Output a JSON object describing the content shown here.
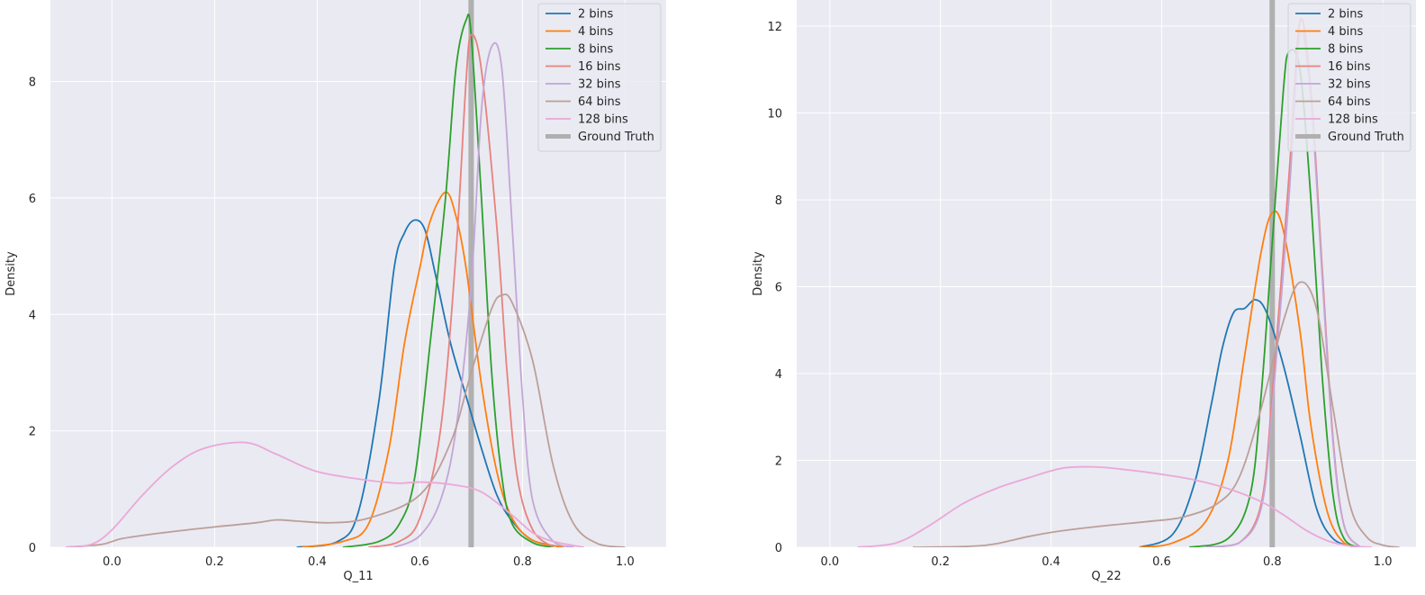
{
  "chart_data": [
    {
      "type": "line",
      "title": "",
      "xlabel": "Q_11",
      "ylabel": "Density",
      "xlim": [
        -0.12,
        1.08
      ],
      "ylim": [
        0,
        9.4
      ],
      "xticks": [
        0.0,
        0.2,
        0.4,
        0.6,
        0.8,
        1.0
      ],
      "yticks": [
        0,
        2,
        4,
        6,
        8
      ],
      "xtick_labels": [
        "0.0",
        "0.2",
        "0.4",
        "0.6",
        "0.8",
        "1.0"
      ],
      "ytick_labels": [
        "0",
        "2",
        "4",
        "6",
        "8"
      ],
      "grid": true,
      "legend_position": "top-right",
      "ground_truth": {
        "name": "Ground Truth",
        "x": 0.7,
        "color": "#b0b0b0"
      },
      "series": [
        {
          "name": "2 bins",
          "color": "#1f77b4",
          "points": [
            [
              0.36,
              0
            ],
            [
              0.44,
              0.1
            ],
            [
              0.48,
              0.6
            ],
            [
              0.52,
              2.5
            ],
            [
              0.55,
              4.8
            ],
            [
              0.57,
              5.4
            ],
            [
              0.59,
              5.62
            ],
            [
              0.61,
              5.45
            ],
            [
              0.63,
              4.7
            ],
            [
              0.66,
              3.5
            ],
            [
              0.69,
              2.6
            ],
            [
              0.72,
              1.7
            ],
            [
              0.75,
              0.9
            ],
            [
              0.78,
              0.45
            ],
            [
              0.82,
              0.12
            ],
            [
              0.88,
              0
            ]
          ]
        },
        {
          "name": "4 bins",
          "color": "#ff7f0e",
          "points": [
            [
              0.37,
              0
            ],
            [
              0.45,
              0.1
            ],
            [
              0.5,
              0.4
            ],
            [
              0.54,
              1.7
            ],
            [
              0.57,
              3.5
            ],
            [
              0.6,
              4.8
            ],
            [
              0.62,
              5.6
            ],
            [
              0.65,
              6.1
            ],
            [
              0.67,
              5.7
            ],
            [
              0.69,
              4.8
            ],
            [
              0.72,
              2.8
            ],
            [
              0.75,
              1.3
            ],
            [
              0.78,
              0.5
            ],
            [
              0.82,
              0.12
            ],
            [
              0.88,
              0
            ]
          ]
        },
        {
          "name": "8 bins",
          "color": "#2ca02c",
          "points": [
            [
              0.45,
              0
            ],
            [
              0.52,
              0.1
            ],
            [
              0.56,
              0.4
            ],
            [
              0.59,
              1.2
            ],
            [
              0.62,
              3.5
            ],
            [
              0.65,
              6.0
            ],
            [
              0.67,
              8.2
            ],
            [
              0.69,
              9.05
            ],
            [
              0.7,
              8.8
            ],
            [
              0.72,
              6.0
            ],
            [
              0.74,
              3.0
            ],
            [
              0.76,
              1.2
            ],
            [
              0.78,
              0.4
            ],
            [
              0.82,
              0.08
            ],
            [
              0.86,
              0
            ]
          ]
        },
        {
          "name": "16 bins",
          "color": "#e7827e",
          "points": [
            [
              0.5,
              0
            ],
            [
              0.56,
              0.1
            ],
            [
              0.6,
              0.5
            ],
            [
              0.64,
              2.0
            ],
            [
              0.67,
              5.0
            ],
            [
              0.69,
              8.0
            ],
            [
              0.7,
              8.8
            ],
            [
              0.72,
              8.2
            ],
            [
              0.75,
              5.5
            ],
            [
              0.77,
              3.0
            ],
            [
              0.79,
              1.2
            ],
            [
              0.82,
              0.3
            ],
            [
              0.86,
              0
            ]
          ]
        },
        {
          "name": "32 bins",
          "color": "#c3a6d6",
          "points": [
            [
              0.55,
              0
            ],
            [
              0.6,
              0.2
            ],
            [
              0.64,
              0.8
            ],
            [
              0.67,
              2.0
            ],
            [
              0.7,
              4.5
            ],
            [
              0.72,
              7.5
            ],
            [
              0.74,
              8.6
            ],
            [
              0.76,
              8.2
            ],
            [
              0.78,
              5.5
            ],
            [
              0.8,
              2.6
            ],
            [
              0.82,
              0.8
            ],
            [
              0.86,
              0.1
            ],
            [
              0.9,
              0
            ]
          ]
        },
        {
          "name": "64 bins",
          "color": "#bc9f99",
          "points": [
            [
              -0.09,
              0
            ],
            [
              -0.02,
              0.05
            ],
            [
              0.02,
              0.15
            ],
            [
              0.1,
              0.25
            ],
            [
              0.2,
              0.35
            ],
            [
              0.28,
              0.42
            ],
            [
              0.32,
              0.47
            ],
            [
              0.36,
              0.45
            ],
            [
              0.42,
              0.42
            ],
            [
              0.5,
              0.5
            ],
            [
              0.6,
              0.9
            ],
            [
              0.66,
              1.8
            ],
            [
              0.7,
              3.0
            ],
            [
              0.74,
              4.1
            ],
            [
              0.76,
              4.33
            ],
            [
              0.78,
              4.2
            ],
            [
              0.82,
              3.2
            ],
            [
              0.86,
              1.4
            ],
            [
              0.9,
              0.4
            ],
            [
              0.95,
              0.05
            ],
            [
              1.0,
              0
            ]
          ]
        },
        {
          "name": "128 bins",
          "color": "#eaa8d8",
          "points": [
            [
              -0.09,
              0
            ],
            [
              -0.04,
              0.05
            ],
            [
              0.0,
              0.3
            ],
            [
              0.06,
              0.9
            ],
            [
              0.12,
              1.4
            ],
            [
              0.18,
              1.7
            ],
            [
              0.26,
              1.8
            ],
            [
              0.32,
              1.6
            ],
            [
              0.4,
              1.3
            ],
            [
              0.5,
              1.15
            ],
            [
              0.56,
              1.1
            ],
            [
              0.6,
              1.12
            ],
            [
              0.66,
              1.08
            ],
            [
              0.72,
              0.95
            ],
            [
              0.78,
              0.55
            ],
            [
              0.82,
              0.25
            ],
            [
              0.86,
              0.1
            ],
            [
              0.92,
              0
            ]
          ]
        }
      ]
    },
    {
      "type": "line",
      "title": "",
      "xlabel": "Q_22",
      "ylabel": "Density",
      "xlim": [
        -0.06,
        1.06
      ],
      "ylim": [
        0,
        12.6
      ],
      "xticks": [
        0.0,
        0.2,
        0.4,
        0.6,
        0.8,
        1.0
      ],
      "yticks": [
        0,
        2,
        4,
        6,
        8,
        10,
        12
      ],
      "xtick_labels": [
        "0.0",
        "0.2",
        "0.4",
        "0.6",
        "0.8",
        "1.0"
      ],
      "ytick_labels": [
        "0",
        "2",
        "4",
        "6",
        "8",
        "10",
        "12"
      ],
      "grid": true,
      "legend_position": "top-right",
      "ground_truth": {
        "name": "Ground Truth",
        "x": 0.8,
        "color": "#b0b0b0"
      },
      "series": [
        {
          "name": "2 bins",
          "color": "#1f77b4",
          "points": [
            [
              0.56,
              0
            ],
            [
              0.62,
              0.3
            ],
            [
              0.66,
              1.5
            ],
            [
              0.69,
              3.3
            ],
            [
              0.71,
              4.6
            ],
            [
              0.73,
              5.4
            ],
            [
              0.75,
              5.5
            ],
            [
              0.77,
              5.7
            ],
            [
              0.79,
              5.4
            ],
            [
              0.82,
              4.2
            ],
            [
              0.85,
              2.6
            ],
            [
              0.88,
              0.9
            ],
            [
              0.91,
              0.2
            ],
            [
              0.95,
              0
            ]
          ]
        },
        {
          "name": "4 bins",
          "color": "#ff7f0e",
          "points": [
            [
              0.56,
              0
            ],
            [
              0.62,
              0.1
            ],
            [
              0.68,
              0.6
            ],
            [
              0.72,
              2.0
            ],
            [
              0.75,
              4.4
            ],
            [
              0.78,
              6.8
            ],
            [
              0.8,
              7.7
            ],
            [
              0.82,
              7.3
            ],
            [
              0.85,
              5.0
            ],
            [
              0.87,
              2.8
            ],
            [
              0.9,
              0.8
            ],
            [
              0.93,
              0.1
            ],
            [
              0.96,
              0
            ]
          ]
        },
        {
          "name": "8 bins",
          "color": "#2ca02c",
          "points": [
            [
              0.65,
              0
            ],
            [
              0.72,
              0.2
            ],
            [
              0.76,
              1.2
            ],
            [
              0.78,
              3.5
            ],
            [
              0.8,
              7.0
            ],
            [
              0.82,
              10.5
            ],
            [
              0.83,
              11.4
            ],
            [
              0.85,
              11.0
            ],
            [
              0.87,
              8.0
            ],
            [
              0.89,
              4.0
            ],
            [
              0.91,
              1.2
            ],
            [
              0.93,
              0.2
            ],
            [
              0.96,
              0
            ]
          ]
        },
        {
          "name": "16 bins",
          "color": "#e7827e",
          "points": [
            [
              0.68,
              0
            ],
            [
              0.74,
              0.1
            ],
            [
              0.78,
              1.0
            ],
            [
              0.8,
              3.5
            ],
            [
              0.83,
              8.5
            ],
            [
              0.85,
              12.1
            ],
            [
              0.87,
              10.5
            ],
            [
              0.89,
              6.5
            ],
            [
              0.91,
              2.5
            ],
            [
              0.93,
              0.5
            ],
            [
              0.96,
              0
            ]
          ]
        },
        {
          "name": "32 bins",
          "color": "#c3a6d6",
          "points": [
            [
              0.68,
              0
            ],
            [
              0.74,
              0.1
            ],
            [
              0.78,
              0.9
            ],
            [
              0.8,
              3.2
            ],
            [
              0.83,
              8.0
            ],
            [
              0.85,
              11.8
            ],
            [
              0.87,
              10.3
            ],
            [
              0.89,
              6.3
            ],
            [
              0.91,
              2.4
            ],
            [
              0.93,
              0.5
            ],
            [
              0.96,
              0
            ]
          ]
        },
        {
          "name": "64 bins",
          "color": "#bc9f99",
          "points": [
            [
              0.15,
              0
            ],
            [
              0.25,
              0.02
            ],
            [
              0.3,
              0.08
            ],
            [
              0.36,
              0.25
            ],
            [
              0.42,
              0.38
            ],
            [
              0.5,
              0.5
            ],
            [
              0.58,
              0.6
            ],
            [
              0.64,
              0.7
            ],
            [
              0.7,
              1.0
            ],
            [
              0.74,
              1.6
            ],
            [
              0.78,
              3.2
            ],
            [
              0.82,
              5.2
            ],
            [
              0.85,
              6.1
            ],
            [
              0.88,
              5.5
            ],
            [
              0.91,
              3.2
            ],
            [
              0.94,
              1.0
            ],
            [
              0.97,
              0.25
            ],
            [
              1.0,
              0.05
            ],
            [
              1.03,
              0
            ]
          ]
        },
        {
          "name": "128 bins",
          "color": "#eaa8d8",
          "points": [
            [
              0.05,
              0
            ],
            [
              0.12,
              0.1
            ],
            [
              0.18,
              0.5
            ],
            [
              0.24,
              1.0
            ],
            [
              0.3,
              1.35
            ],
            [
              0.36,
              1.6
            ],
            [
              0.42,
              1.82
            ],
            [
              0.48,
              1.85
            ],
            [
              0.54,
              1.78
            ],
            [
              0.6,
              1.68
            ],
            [
              0.66,
              1.55
            ],
            [
              0.72,
              1.35
            ],
            [
              0.78,
              1.05
            ],
            [
              0.82,
              0.75
            ],
            [
              0.86,
              0.4
            ],
            [
              0.9,
              0.15
            ],
            [
              0.94,
              0.03
            ],
            [
              0.98,
              0
            ]
          ]
        }
      ]
    }
  ]
}
